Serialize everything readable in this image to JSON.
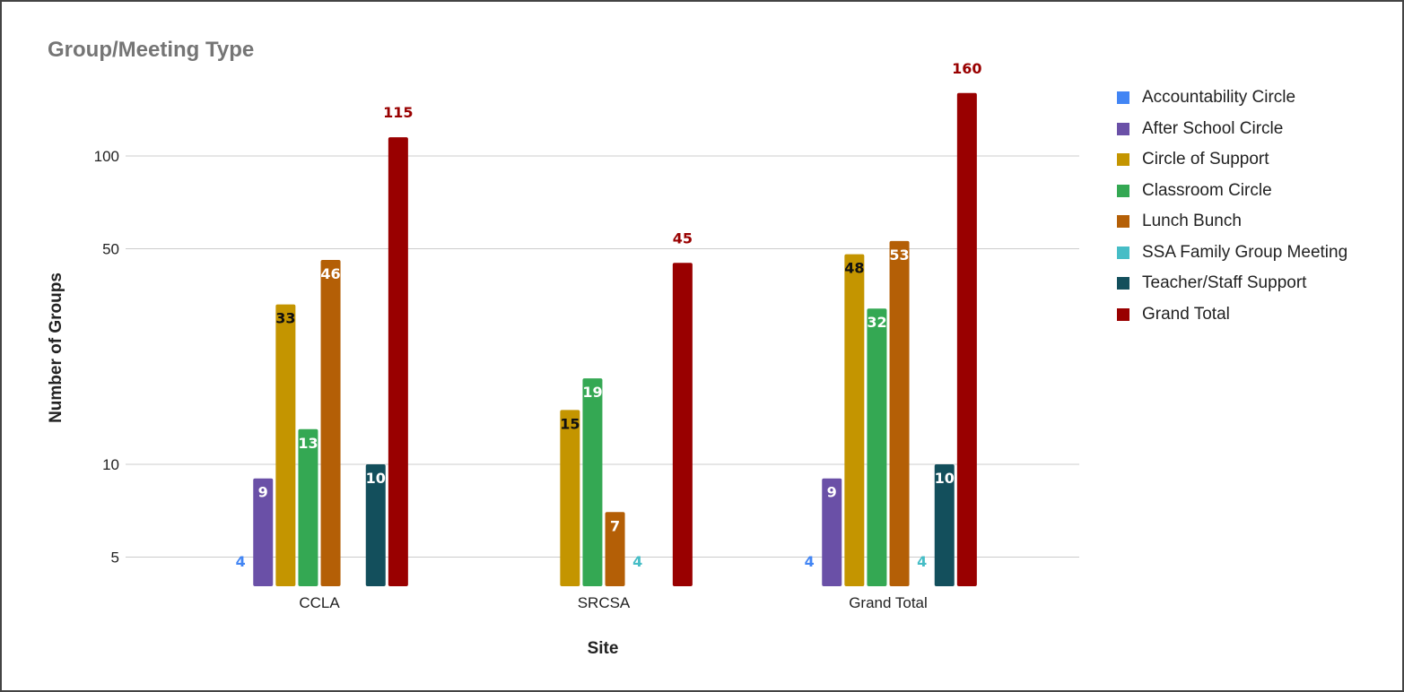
{
  "chart_data": {
    "type": "bar",
    "title": "Group/Meeting Type",
    "xlabel": "Site",
    "ylabel": "Number of Groups",
    "y_scale": "log",
    "ylim": [
      4,
      175
    ],
    "yticks": [
      5,
      10,
      50,
      100
    ],
    "grid": true,
    "legend_position": "right",
    "categories": [
      "CCLA",
      "SRCSA",
      "Grand Total"
    ],
    "series": [
      {
        "name": "Accountability Circle",
        "color": "#4285f4",
        "values": [
          4,
          null,
          4
        ]
      },
      {
        "name": "After School Circle",
        "color": "#6a50a7",
        "values": [
          9,
          null,
          9
        ]
      },
      {
        "name": "Circle of Support",
        "color": "#c49500",
        "values": [
          33,
          15,
          48
        ]
      },
      {
        "name": "Classroom Circle",
        "color": "#34a853",
        "values": [
          13,
          19,
          32
        ]
      },
      {
        "name": "Lunch Bunch",
        "color": "#b45f06",
        "values": [
          46,
          7,
          53
        ]
      },
      {
        "name": "SSA Family Group Meeting",
        "color": "#46bdc6",
        "values": [
          null,
          4,
          4
        ]
      },
      {
        "name": "Teacher/Staff Support",
        "color": "#134f5c",
        "values": [
          10,
          null,
          10
        ]
      },
      {
        "name": "Grand Total",
        "color": "#990000",
        "values": [
          115,
          45,
          160
        ]
      }
    ]
  }
}
